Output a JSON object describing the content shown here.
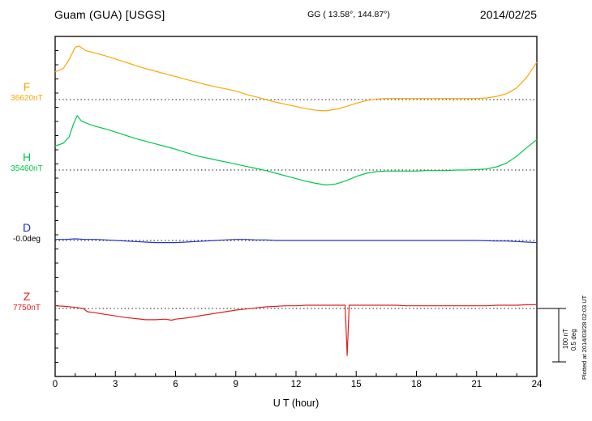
{
  "header": {
    "station": "Guam (GUA)  [USGS]",
    "coordinates": "GG ( 13.58°, 144.87°)",
    "date": "2014/02/25"
  },
  "axis": {
    "x_label": "U T (hour)"
  },
  "scale_bar": {
    "nt": "100 nT",
    "deg": "0.5 deg"
  },
  "footer": {
    "plotted_at": "Plotted at 2014/03/28 02:03 UT"
  },
  "chart_data": {
    "type": "line",
    "title": "Guam (GUA) [USGS] magnetogram 2014/02/25",
    "xlabel": "U T (hour)",
    "x_range": [
      0,
      24
    ],
    "x_ticks": [
      0,
      3,
      6,
      9,
      12,
      15,
      18,
      21,
      24
    ],
    "grid": "dotted baseline per trace",
    "legend_position": "left margin",
    "scale_reference": {
      "nT_per_division": 100,
      "deg_per_division": 0.5
    },
    "series": [
      {
        "name": "F",
        "unit": "nT",
        "color": "#FFA500",
        "value_color": "#FFA500",
        "baseline": 36620,
        "baseline_label": "36620nT",
        "points": [
          [
            0,
            36672
          ],
          [
            0.4,
            36678
          ],
          [
            0.7,
            36695
          ],
          [
            1,
            36718
          ],
          [
            1.2,
            36720
          ],
          [
            1.5,
            36712
          ],
          [
            2,
            36707
          ],
          [
            2.5,
            36702
          ],
          [
            3,
            36696
          ],
          [
            3.5,
            36690
          ],
          [
            4,
            36684
          ],
          [
            4.5,
            36678
          ],
          [
            5,
            36673
          ],
          [
            5.5,
            36668
          ],
          [
            6,
            36663
          ],
          [
            6.5,
            36658
          ],
          [
            7,
            36653
          ],
          [
            7.5,
            36648
          ],
          [
            8,
            36644
          ],
          [
            8.5,
            36640
          ],
          [
            9,
            36636
          ],
          [
            9.5,
            36630
          ],
          [
            10,
            36625
          ],
          [
            10.5,
            36620
          ],
          [
            11,
            36615
          ],
          [
            11.5,
            36611
          ],
          [
            12,
            36607
          ],
          [
            12.5,
            36603
          ],
          [
            13,
            36600
          ],
          [
            13.5,
            36599
          ],
          [
            14,
            36602
          ],
          [
            14.5,
            36607
          ],
          [
            15,
            36613
          ],
          [
            15.5,
            36618
          ],
          [
            16,
            36621
          ],
          [
            16.5,
            36622
          ],
          [
            17,
            36622
          ],
          [
            17.5,
            36622
          ],
          [
            18,
            36622
          ],
          [
            18.5,
            36622
          ],
          [
            19,
            36622
          ],
          [
            19.5,
            36622
          ],
          [
            20,
            36622
          ],
          [
            20.5,
            36622
          ],
          [
            21,
            36622
          ],
          [
            21.5,
            36623
          ],
          [
            22,
            36626
          ],
          [
            22.5,
            36631
          ],
          [
            23,
            36642
          ],
          [
            23.5,
            36662
          ],
          [
            24,
            36690
          ]
        ]
      },
      {
        "name": "H",
        "unit": "nT",
        "color": "#00C84A",
        "value_color": "#00C84A",
        "baseline": 35460,
        "baseline_label": "35460nT",
        "points": [
          [
            0,
            35505
          ],
          [
            0.4,
            35510
          ],
          [
            0.7,
            35522
          ],
          [
            0.9,
            35545
          ],
          [
            1.1,
            35562
          ],
          [
            1.3,
            35552
          ],
          [
            1.6,
            35547
          ],
          [
            2,
            35542
          ],
          [
            2.5,
            35537
          ],
          [
            3,
            35531
          ],
          [
            3.5,
            35525
          ],
          [
            4,
            35519
          ],
          [
            4.5,
            35514
          ],
          [
            5,
            35509
          ],
          [
            5.5,
            35504
          ],
          [
            6,
            35499
          ],
          [
            6.5,
            35493
          ],
          [
            7,
            35487
          ],
          [
            7.5,
            35483
          ],
          [
            8,
            35479
          ],
          [
            8.5,
            35475
          ],
          [
            9,
            35471
          ],
          [
            9.5,
            35467
          ],
          [
            10,
            35463
          ],
          [
            10.5,
            35459
          ],
          [
            11,
            35454
          ],
          [
            11.5,
            35449
          ],
          [
            12,
            35444
          ],
          [
            12.5,
            35439
          ],
          [
            13,
            35435
          ],
          [
            13.5,
            35432
          ],
          [
            14,
            35434
          ],
          [
            14.5,
            35440
          ],
          [
            15,
            35448
          ],
          [
            15.5,
            35454
          ],
          [
            16,
            35457
          ],
          [
            16.5,
            35458
          ],
          [
            17,
            35458
          ],
          [
            17.5,
            35458
          ],
          [
            18,
            35458
          ],
          [
            18.5,
            35459
          ],
          [
            19,
            35459
          ],
          [
            19.5,
            35459
          ],
          [
            20,
            35460
          ],
          [
            20.5,
            35460
          ],
          [
            21,
            35461
          ],
          [
            21.5,
            35462
          ],
          [
            22,
            35466
          ],
          [
            22.5,
            35473
          ],
          [
            23,
            35486
          ],
          [
            23.5,
            35502
          ],
          [
            24,
            35517
          ]
        ]
      },
      {
        "name": "D",
        "unit": "deg",
        "color": "#2233CC",
        "value_color": "#000000",
        "baseline": -0.0,
        "baseline_label": "-0.0deg",
        "points": [
          [
            0,
            0.01
          ],
          [
            0.5,
            0.01
          ],
          [
            1,
            0.015
          ],
          [
            1.5,
            0.01
          ],
          [
            2,
            0.01
          ],
          [
            2.5,
            0.005
          ],
          [
            3,
            0
          ],
          [
            3.5,
            -0.005
          ],
          [
            4,
            -0.01
          ],
          [
            4.5,
            -0.015
          ],
          [
            5,
            -0.02
          ],
          [
            5.5,
            -0.02
          ],
          [
            6,
            -0.02
          ],
          [
            6.5,
            -0.015
          ],
          [
            7,
            -0.01
          ],
          [
            7.5,
            -0.005
          ],
          [
            8,
            0
          ],
          [
            8.5,
            0.005
          ],
          [
            9,
            0.01
          ],
          [
            9.5,
            0.01
          ],
          [
            10,
            0.005
          ],
          [
            10.5,
            0.005
          ],
          [
            11,
            0
          ],
          [
            12,
            0
          ],
          [
            13,
            0
          ],
          [
            14,
            0
          ],
          [
            15,
            0
          ],
          [
            16,
            0
          ],
          [
            17,
            0
          ],
          [
            18,
            0
          ],
          [
            19,
            0
          ],
          [
            20,
            0
          ],
          [
            21,
            0
          ],
          [
            22,
            -0.005
          ],
          [
            22.5,
            -0.005
          ],
          [
            23,
            -0.01
          ],
          [
            23.5,
            -0.015
          ],
          [
            24,
            -0.02
          ]
        ]
      },
      {
        "name": "Z",
        "unit": "nT",
        "color": "#E02020",
        "value_color": "#E02020",
        "baseline": 7750,
        "baseline_label": "7750nT",
        "points": [
          [
            0,
            7755
          ],
          [
            0.5,
            7754
          ],
          [
            1,
            7752
          ],
          [
            1.4,
            7750
          ],
          [
            1.6,
            7744
          ],
          [
            2,
            7742
          ],
          [
            2.5,
            7739
          ],
          [
            3,
            7736
          ],
          [
            3.5,
            7733
          ],
          [
            4,
            7731
          ],
          [
            4.5,
            7729
          ],
          [
            5,
            7729
          ],
          [
            5.5,
            7730
          ],
          [
            5.8,
            7728
          ],
          [
            6,
            7730
          ],
          [
            6.5,
            7732
          ],
          [
            7,
            7735
          ],
          [
            7.5,
            7738
          ],
          [
            8,
            7741
          ],
          [
            8.5,
            7744
          ],
          [
            9,
            7747
          ],
          [
            9.5,
            7749
          ],
          [
            10,
            7751
          ],
          [
            10.5,
            7753
          ],
          [
            11,
            7754
          ],
          [
            11.5,
            7755
          ],
          [
            12,
            7755
          ],
          [
            12.5,
            7756
          ],
          [
            13,
            7756
          ],
          [
            13.5,
            7756
          ],
          [
            14,
            7756
          ],
          [
            14.45,
            7756
          ],
          [
            14.55,
            7662
          ],
          [
            14.65,
            7756
          ],
          [
            15,
            7756
          ],
          [
            15.5,
            7756
          ],
          [
            16,
            7756
          ],
          [
            16.5,
            7756
          ],
          [
            17,
            7756
          ],
          [
            17.5,
            7755
          ],
          [
            18,
            7755
          ],
          [
            18.5,
            7755
          ],
          [
            19,
            7755
          ],
          [
            19.5,
            7755
          ],
          [
            20,
            7755
          ],
          [
            20.5,
            7755
          ],
          [
            21,
            7755
          ],
          [
            21.5,
            7755
          ],
          [
            22,
            7756
          ],
          [
            22.5,
            7756
          ],
          [
            23,
            7756
          ],
          [
            23.5,
            7757
          ],
          [
            24,
            7757
          ]
        ]
      }
    ]
  }
}
